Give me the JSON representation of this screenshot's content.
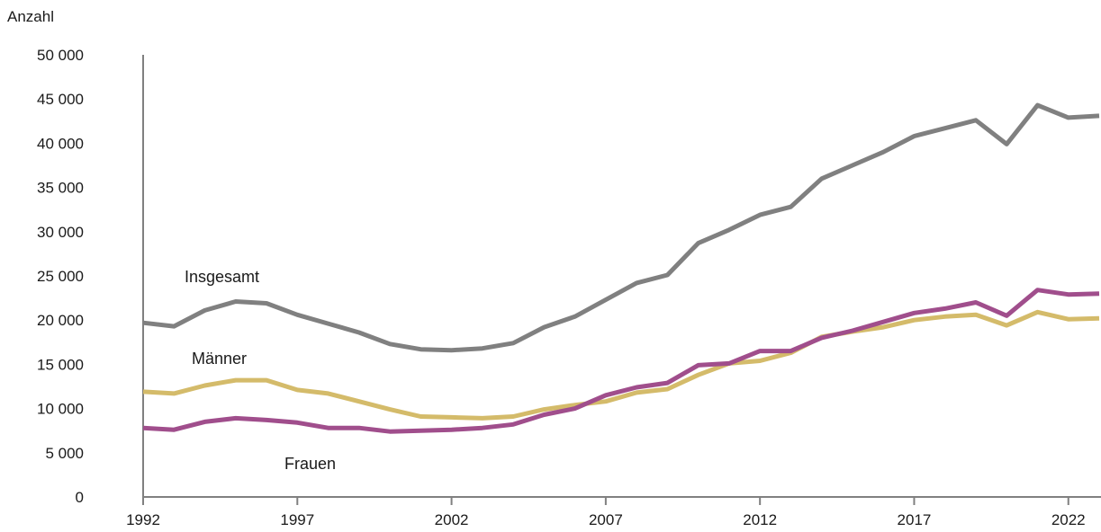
{
  "chart_data": {
    "type": "line",
    "ylabel": "Anzahl",
    "ylim": [
      0,
      50000
    ],
    "y_ticks": [
      0,
      5000,
      10000,
      15000,
      20000,
      25000,
      30000,
      35000,
      40000,
      45000,
      50000
    ],
    "y_tick_labels": [
      "0",
      "5 000",
      "10 000",
      "15 000",
      "20 000",
      "25 000",
      "30 000",
      "35 000",
      "40 000",
      "45 000",
      "50 000"
    ],
    "x": [
      1992,
      1993,
      1994,
      1995,
      1996,
      1997,
      1998,
      1999,
      2000,
      2001,
      2002,
      2003,
      2004,
      2005,
      2006,
      2007,
      2008,
      2009,
      2010,
      2011,
      2012,
      2013,
      2014,
      2015,
      2016,
      2017,
      2018,
      2019,
      2020,
      2021,
      2022,
      2023
    ],
    "x_ticks": [
      1992,
      1997,
      2002,
      2007,
      2012,
      2017,
      2022
    ],
    "x_tick_labels": [
      "1992",
      "1997",
      "2002",
      "2007",
      "2012",
      "2017",
      "2022"
    ],
    "grid": false,
    "series": [
      {
        "name": "Insgesamt",
        "color": "#808080",
        "values": [
          19700,
          19300,
          21100,
          22100,
          21900,
          20600,
          19600,
          18600,
          17300,
          16700,
          16600,
          16800,
          17400,
          19200,
          20400,
          22300,
          24200,
          25100,
          28700,
          30200,
          31900,
          32800,
          36000,
          37500,
          39000,
          40800,
          41700,
          42600,
          39900,
          44300,
          42900,
          43100
        ]
      },
      {
        "name": "Männer",
        "color": "#d4bb6a",
        "values": [
          11900,
          11700,
          12600,
          13200,
          13200,
          12100,
          11700,
          10800,
          9900,
          9100,
          9000,
          8900,
          9100,
          9900,
          10400,
          10800,
          11800,
          12200,
          13800,
          15100,
          15400,
          16300,
          18100,
          18700,
          19200,
          20000,
          20400,
          20600,
          19400,
          20900,
          20100,
          20200
        ]
      },
      {
        "name": "Frauen",
        "color": "#a04e8c",
        "values": [
          7800,
          7600,
          8500,
          8900,
          8700,
          8400,
          7800,
          7800,
          7400,
          7500,
          7600,
          7800,
          8200,
          9300,
          10000,
          11500,
          12400,
          12900,
          14900,
          15100,
          16500,
          16500,
          18000,
          18800,
          19800,
          20800,
          21300,
          22000,
          20500,
          23400,
          22900,
          23000
        ]
      }
    ]
  }
}
